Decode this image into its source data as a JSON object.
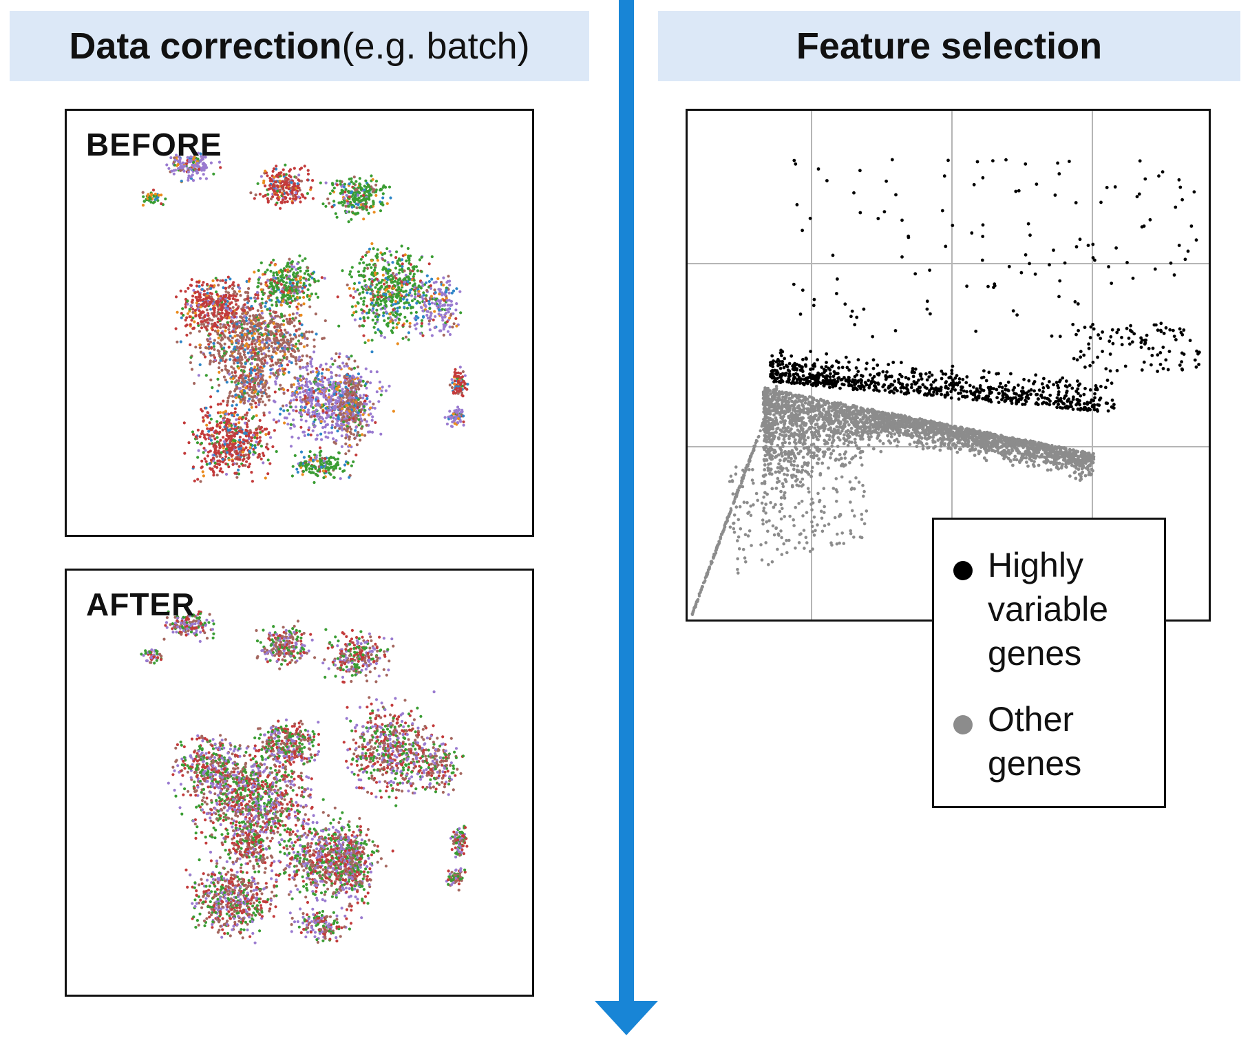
{
  "left_section": {
    "title_bold": "Data correction",
    "title_normal": " (e.g. batch)",
    "panels": [
      {
        "label": "BEFORE"
      },
      {
        "label": "AFTER"
      }
    ],
    "batch_colors": [
      "#c33b3b",
      "#a4675f",
      "#9a7bd0",
      "#3a9d33",
      "#ea8c1f",
      "#2f86c8"
    ]
  },
  "right_section": {
    "title": "Feature selection"
  },
  "arrow": {
    "color": "#1885d6"
  },
  "chart_data": {
    "type": "scatter",
    "title": "",
    "xlabel": "",
    "ylabel": "",
    "grid": true,
    "series": [
      {
        "name": "Highly variable genes",
        "color": "#000000"
      },
      {
        "name": "Other genes",
        "color": "#8c8c8c"
      }
    ],
    "legend": {
      "placement": "bottom-right",
      "entries": [
        {
          "label": "Highly variable genes",
          "color": "#000000"
        },
        {
          "label": "Other genes",
          "color": "#8c8c8c"
        }
      ]
    }
  }
}
